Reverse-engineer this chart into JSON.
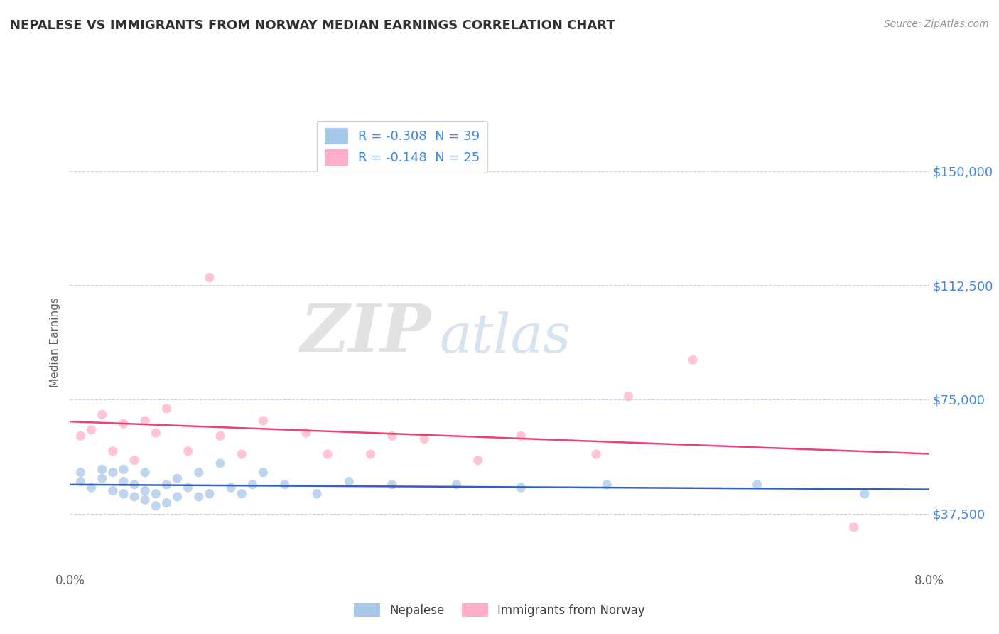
{
  "title": "NEPALESE VS IMMIGRANTS FROM NORWAY MEDIAN EARNINGS CORRELATION CHART",
  "source": "Source: ZipAtlas.com",
  "ylabel_label": "Median Earnings",
  "x_min": 0.0,
  "x_max": 0.08,
  "y_min": 18750,
  "y_max": 168750,
  "yticks": [
    37500,
    75000,
    112500,
    150000
  ],
  "ytick_labels": [
    "$37,500",
    "$75,000",
    "$112,500",
    "$150,000"
  ],
  "xticks": [
    0.0,
    0.02,
    0.04,
    0.06,
    0.08
  ],
  "xtick_labels": [
    "0.0%",
    "",
    "",
    "",
    "8.0%"
  ],
  "watermark_zip": "ZIP",
  "watermark_atlas": "atlas",
  "legend_label1": "R = -0.308  N = 39",
  "legend_label2": "R = -0.148  N = 25",
  "bottom_label1": "Nepalese",
  "bottom_label2": "Immigrants from Norway",
  "nepalese_color": "#a8c8e8",
  "norway_color": "#ffb0c8",
  "nepalese_line_color": "#3060c0",
  "norway_line_color": "#f04070",
  "nepalese_scatter_x": [
    0.001,
    0.001,
    0.002,
    0.003,
    0.003,
    0.004,
    0.004,
    0.005,
    0.005,
    0.005,
    0.006,
    0.006,
    0.007,
    0.007,
    0.007,
    0.008,
    0.008,
    0.009,
    0.009,
    0.01,
    0.01,
    0.011,
    0.012,
    0.012,
    0.013,
    0.014,
    0.015,
    0.016,
    0.017,
    0.018,
    0.02,
    0.023,
    0.026,
    0.03,
    0.036,
    0.042,
    0.05,
    0.064,
    0.074
  ],
  "nepalese_scatter_y": [
    51000,
    48000,
    46000,
    49000,
    52000,
    45000,
    51000,
    44000,
    48000,
    52000,
    43000,
    47000,
    42000,
    45000,
    51000,
    40000,
    44000,
    41000,
    47000,
    49000,
    43000,
    46000,
    43000,
    51000,
    44000,
    54000,
    46000,
    44000,
    47000,
    51000,
    47000,
    44000,
    48000,
    47000,
    47000,
    46000,
    47000,
    47000,
    44000
  ],
  "norway_scatter_x": [
    0.001,
    0.002,
    0.003,
    0.004,
    0.005,
    0.006,
    0.007,
    0.008,
    0.009,
    0.011,
    0.013,
    0.014,
    0.016,
    0.018,
    0.022,
    0.024,
    0.028,
    0.03,
    0.033,
    0.038,
    0.042,
    0.049,
    0.052,
    0.058,
    0.073
  ],
  "norway_scatter_y": [
    63000,
    65000,
    70000,
    58000,
    67000,
    55000,
    68000,
    64000,
    72000,
    58000,
    115000,
    63000,
    57000,
    68000,
    64000,
    57000,
    57000,
    63000,
    62000,
    55000,
    63000,
    57000,
    76000,
    88000,
    33000
  ],
  "background_color": "#ffffff",
  "grid_color": "#c8d4e8",
  "title_color": "#303030",
  "axis_label_color": "#606060",
  "ytick_color": "#4488dd",
  "xtick_color": "#606060",
  "source_color": "#909090"
}
